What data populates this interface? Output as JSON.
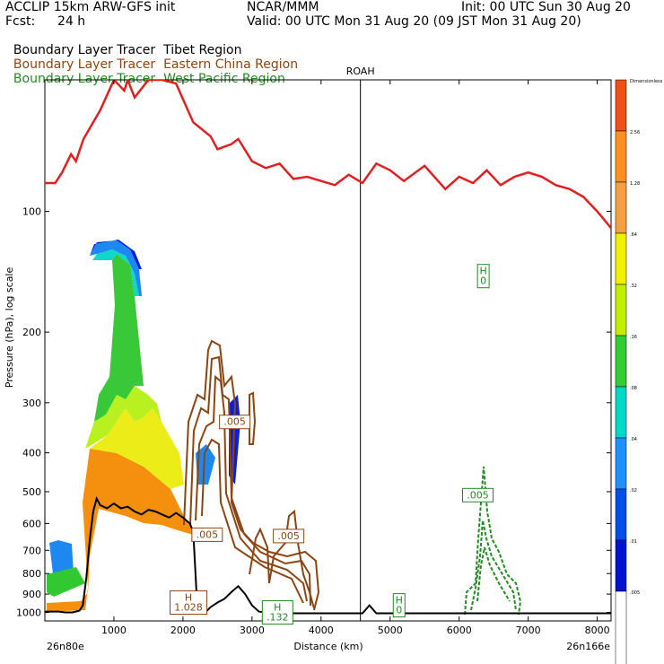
{
  "header": {
    "model": "ACCLIP 15km ARW-GFS init",
    "org": "NCAR/MMM",
    "init": "Init: 00 UTC Sun 30 Aug 20",
    "fcst_label": "Fcst:",
    "fcst_value": "24 h",
    "valid": "Valid: 00 UTC Mon 31 Aug 20 (09 JST Mon 31 Aug 20)",
    "tracers": [
      {
        "prefix": "Boundary Layer Tracer",
        "region": "Tibet Region",
        "color": "#000000"
      },
      {
        "prefix": "Boundary Layer Tracer",
        "region": "Eastern China Region",
        "color": "#8b4513"
      },
      {
        "prefix": "Boundary Layer Tracer",
        "region": "West Pacific Region",
        "color": "#228b22"
      }
    ]
  },
  "chart_data": {
    "type": "cross-section",
    "xlabel": "Distance (km)",
    "ylabel": "Pressure (hPa), log scale",
    "xlim": [
      0,
      8200
    ],
    "ylim": [
      1050,
      47
    ],
    "x_ticks": [
      1000,
      2000,
      3000,
      4000,
      5000,
      6000,
      7000,
      8000
    ],
    "y_ticks": [
      100,
      200,
      300,
      400,
      500,
      600,
      700,
      800,
      900,
      1000
    ],
    "start_label": "26n80e",
    "end_label": "26n166e",
    "station": {
      "name": "ROAH",
      "x": 4570
    },
    "tibet_shading_levels": [
      "Dimensionless",
      "2.56",
      "1.28",
      ".64",
      ".32",
      ".16",
      ".08",
      ".04",
      ".02",
      ".01",
      ".005"
    ],
    "tibet_shading_colors": [
      "#f05014",
      "#ff9020",
      "#f4a040",
      "#f0f000",
      "#c0f000",
      "#32cd32",
      "#00d8c8",
      "#1e90ff",
      "#0050e8",
      "#0014d0",
      "#ffffff"
    ],
    "tropopause": {
      "color": "#e02020",
      "x": [
        0,
        150,
        250,
        380,
        450,
        560,
        800,
        1000,
        1150,
        1200,
        1300,
        1500,
        1700,
        1900,
        2150,
        2400,
        2500,
        2700,
        2800,
        3000,
        3200,
        3400,
        3600,
        3800,
        4000,
        4200,
        4400,
        4600,
        4800,
        5000,
        5200,
        5500,
        5800,
        6000,
        6200,
        6400,
        6600,
        6800,
        7000,
        7200,
        7400,
        7600,
        7800,
        8000,
        8200
      ],
      "p": [
        85,
        85,
        80,
        72,
        75,
        66,
        56,
        47,
        50,
        47,
        52,
        47,
        47,
        48,
        60,
        65,
        70,
        68,
        66,
        75,
        78,
        76,
        83,
        82,
        84,
        86,
        81,
        85,
        76,
        79,
        84,
        77,
        88,
        82,
        85,
        79,
        86,
        82,
        80,
        82,
        86,
        88,
        92,
        100,
        110
      ]
    },
    "terrain": {
      "color": "#000000",
      "x": [
        0,
        100,
        200,
        300,
        400,
        500,
        550,
        600,
        650,
        700,
        750,
        800,
        900,
        1000,
        1100,
        1200,
        1300,
        1400,
        1500,
        1600,
        1700,
        1800,
        1900,
        2000,
        2100,
        2150,
        2200,
        2250,
        2300,
        2350,
        2400,
        2500,
        2600,
        2700,
        2800,
        2900,
        3000,
        3100,
        3200,
        3300,
        3500,
        4000,
        4600,
        4700,
        4800,
        4900,
        5000,
        6000,
        7000,
        8200
      ],
      "p": [
        995,
        995,
        995,
        1000,
        1000,
        990,
        960,
        820,
        660,
        560,
        520,
        540,
        550,
        535,
        550,
        545,
        560,
        570,
        555,
        560,
        570,
        580,
        565,
        580,
        600,
        630,
        920,
        990,
        1000,
        990,
        970,
        945,
        925,
        890,
        860,
        900,
        960,
        995,
        1000,
        1000,
        1005,
        1005,
        1005,
        960,
        1005,
        1005,
        1005,
        1005,
        1005,
        1005
      ]
    },
    "labels": [
      {
        "text": ".005",
        "color": "#8b4513",
        "x": 2750,
        "p": 335,
        "boxed": true
      },
      {
        "text": ".005",
        "color": "#8b4513",
        "x": 2350,
        "p": 640,
        "boxed": true
      },
      {
        "text": ".005",
        "color": "#8b4513",
        "x": 3530,
        "p": 645,
        "boxed": true
      },
      {
        "text": "H\n1.028",
        "color": "#8b4513",
        "x": 2080,
        "p": 945,
        "boxed": true
      },
      {
        "text": ".005",
        "color": "#228b22",
        "x": 6270,
        "p": 510,
        "boxed": true
      },
      {
        "text": "H\n0",
        "color": "#228b22",
        "x": 6350,
        "p": 145,
        "boxed": true
      },
      {
        "text": "H\n0",
        "color": "#228b22",
        "x": 5130,
        "p": 960,
        "boxed": true
      },
      {
        "text": "H\n.132",
        "color": "#228b22",
        "x": 3370,
        "p": 1000,
        "boxed": true
      }
    ]
  }
}
